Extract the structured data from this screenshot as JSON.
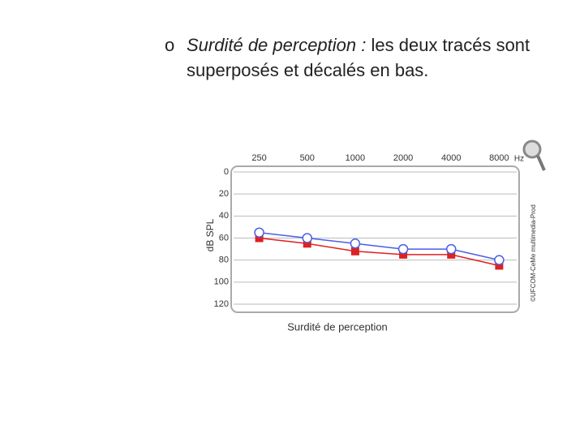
{
  "bullet": {
    "marker": "o",
    "emphasis": "Surdité de perception :",
    "text": "les deux tracés sont superposés et décalés en bas."
  },
  "chart_data": {
    "type": "line",
    "x_unit": "Hz",
    "y_label": "dB SPL",
    "x_label": "Surdité de perception",
    "credit": "©UFCOM-CeMe multimedia-Prod",
    "categories": [
      "250",
      "500",
      "1000",
      "2000",
      "4000",
      "8000"
    ],
    "series": [
      {
        "color": "#e02020",
        "marker": "square",
        "values": [
          60,
          65,
          72,
          75,
          75,
          85
        ]
      },
      {
        "color": "#4a5ee8",
        "marker": "circle",
        "values": [
          55,
          60,
          65,
          70,
          70,
          80
        ]
      }
    ],
    "ylim": [
      0,
      120
    ],
    "yticks": [
      0,
      20,
      40,
      60,
      80,
      100,
      120
    ],
    "y_inverted": true,
    "grid": true
  }
}
